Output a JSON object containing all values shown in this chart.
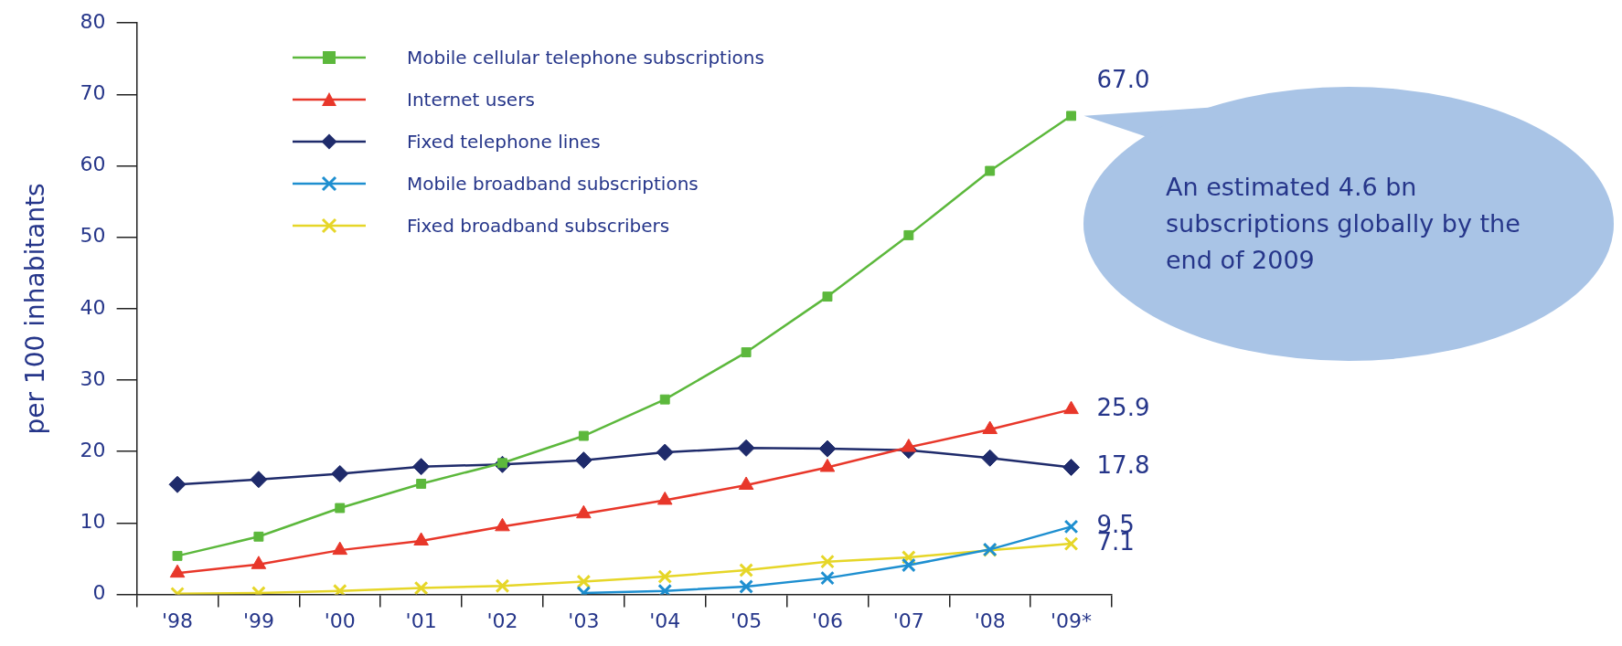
{
  "chart_data": {
    "type": "line",
    "ylabel": "per 100 inhabitants",
    "categories": [
      "'98",
      "'99",
      "'00",
      "'01",
      "'02",
      "'03",
      "'04",
      "'05",
      "'06",
      "'07",
      "'08",
      "'09*"
    ],
    "ylim": [
      0,
      80
    ],
    "yticks": [
      0,
      10,
      20,
      30,
      40,
      50,
      60,
      70,
      80
    ],
    "grid": false,
    "legend": "top left",
    "line_style": "solid",
    "series": [
      {
        "name": "Mobile cellular telephone subscriptions",
        "color": "#5cb83c",
        "marker": "square",
        "values": [
          5.4,
          8.1,
          12.1,
          15.5,
          18.4,
          22.2,
          27.3,
          33.9,
          41.7,
          50.3,
          59.3,
          67.0
        ],
        "value_labels": [
          null,
          null,
          null,
          null,
          null,
          null,
          null,
          null,
          null,
          null,
          null,
          "67.0"
        ]
      },
      {
        "name": "Internet users",
        "color": "#e8372a",
        "marker": "triangle",
        "values": [
          3.0,
          4.2,
          6.2,
          7.5,
          9.5,
          11.3,
          13.2,
          15.3,
          17.8,
          20.6,
          23.1,
          25.9
        ],
        "value_labels": [
          null,
          null,
          null,
          null,
          null,
          null,
          null,
          null,
          null,
          null,
          null,
          "25.9"
        ]
      },
      {
        "name": "Fixed telephone lines",
        "color": "#1f2b6b",
        "marker": "diamond",
        "values": [
          15.4,
          16.1,
          16.9,
          17.9,
          18.2,
          18.8,
          19.9,
          20.5,
          20.4,
          20.2,
          19.1,
          17.8
        ],
        "value_labels": [
          null,
          null,
          null,
          null,
          null,
          null,
          null,
          null,
          null,
          null,
          null,
          "17.8"
        ]
      },
      {
        "name": "Mobile broadband subscriptions",
        "color": "#1e8fd0",
        "marker": "cross",
        "values": [
          null,
          null,
          null,
          null,
          null,
          0.2,
          0.5,
          1.1,
          2.3,
          4.1,
          6.3,
          9.5
        ],
        "value_labels": [
          null,
          null,
          null,
          null,
          null,
          null,
          null,
          null,
          null,
          null,
          null,
          "9.5"
        ]
      },
      {
        "name": "Fixed broadband subscribers",
        "color": "#e6d628",
        "marker": "cross",
        "values": [
          0.1,
          0.2,
          0.5,
          0.9,
          1.2,
          1.8,
          2.5,
          3.4,
          4.6,
          5.2,
          6.2,
          7.1
        ],
        "value_labels": [
          null,
          null,
          null,
          null,
          null,
          null,
          null,
          null,
          null,
          null,
          null,
          "7.1"
        ]
      }
    ],
    "annotations": [
      "An estimated 4.6 bn subscriptions globally by the end of 2009"
    ]
  }
}
